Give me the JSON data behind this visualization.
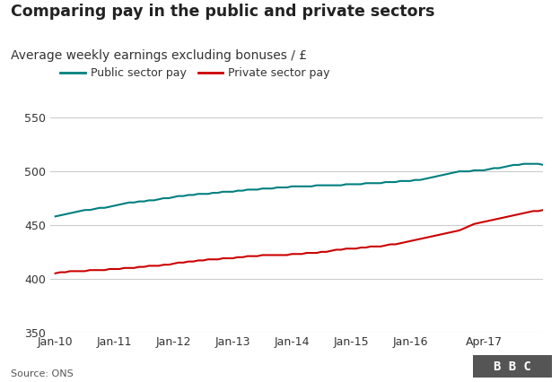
{
  "title": "Comparing pay in the public and private sectors",
  "subtitle": "Average weekly earnings excluding bonuses / £",
  "public_label": "Public sector pay",
  "private_label": "Private sector pay",
  "public_color": "#007f7f",
  "private_color": "#cc0000",
  "background_color": "#ffffff",
  "grid_color": "#cccccc",
  "ylim": [
    350,
    560
  ],
  "yticks": [
    350,
    400,
    450,
    500,
    550
  ],
  "source_text": "Source: ONS",
  "bbc_text": "B B C",
  "bbc_bg": "#555555",
  "xtick_labels": [
    "Jan-10",
    "Jan-11",
    "Jan-12",
    "Jan-13",
    "Jan-14",
    "Jan-15",
    "Jan-16",
    "Apr-17"
  ],
  "xtick_positions": [
    0,
    12,
    24,
    36,
    48,
    60,
    72,
    87
  ],
  "xlim": [
    -1,
    99
  ],
  "public_data": [
    458,
    459,
    460,
    461,
    462,
    463,
    464,
    464,
    465,
    466,
    466,
    467,
    468,
    469,
    470,
    471,
    471,
    472,
    472,
    473,
    473,
    474,
    475,
    475,
    476,
    477,
    477,
    478,
    478,
    479,
    479,
    479,
    480,
    480,
    481,
    481,
    481,
    482,
    482,
    483,
    483,
    483,
    484,
    484,
    484,
    485,
    485,
    485,
    486,
    486,
    486,
    486,
    486,
    487,
    487,
    487,
    487,
    487,
    487,
    488,
    488,
    488,
    488,
    489,
    489,
    489,
    489,
    490,
    490,
    490,
    491,
    491,
    491,
    492,
    492,
    493,
    494,
    495,
    496,
    497,
    498,
    499,
    500,
    500,
    500,
    501,
    501,
    501,
    502,
    503,
    503,
    504,
    505,
    506,
    506,
    507,
    507,
    507,
    507,
    506
  ],
  "private_data": [
    405,
    406,
    406,
    407,
    407,
    407,
    407,
    408,
    408,
    408,
    408,
    409,
    409,
    409,
    410,
    410,
    410,
    411,
    411,
    412,
    412,
    412,
    413,
    413,
    414,
    415,
    415,
    416,
    416,
    417,
    417,
    418,
    418,
    418,
    419,
    419,
    419,
    420,
    420,
    421,
    421,
    421,
    422,
    422,
    422,
    422,
    422,
    422,
    423,
    423,
    423,
    424,
    424,
    424,
    425,
    425,
    426,
    427,
    427,
    428,
    428,
    428,
    429,
    429,
    430,
    430,
    430,
    431,
    432,
    432,
    433,
    434,
    435,
    436,
    437,
    438,
    439,
    440,
    441,
    442,
    443,
    444,
    445,
    447,
    449,
    451,
    452,
    453,
    454,
    455,
    456,
    457,
    458,
    459,
    460,
    461,
    462,
    463,
    463,
    464
  ]
}
